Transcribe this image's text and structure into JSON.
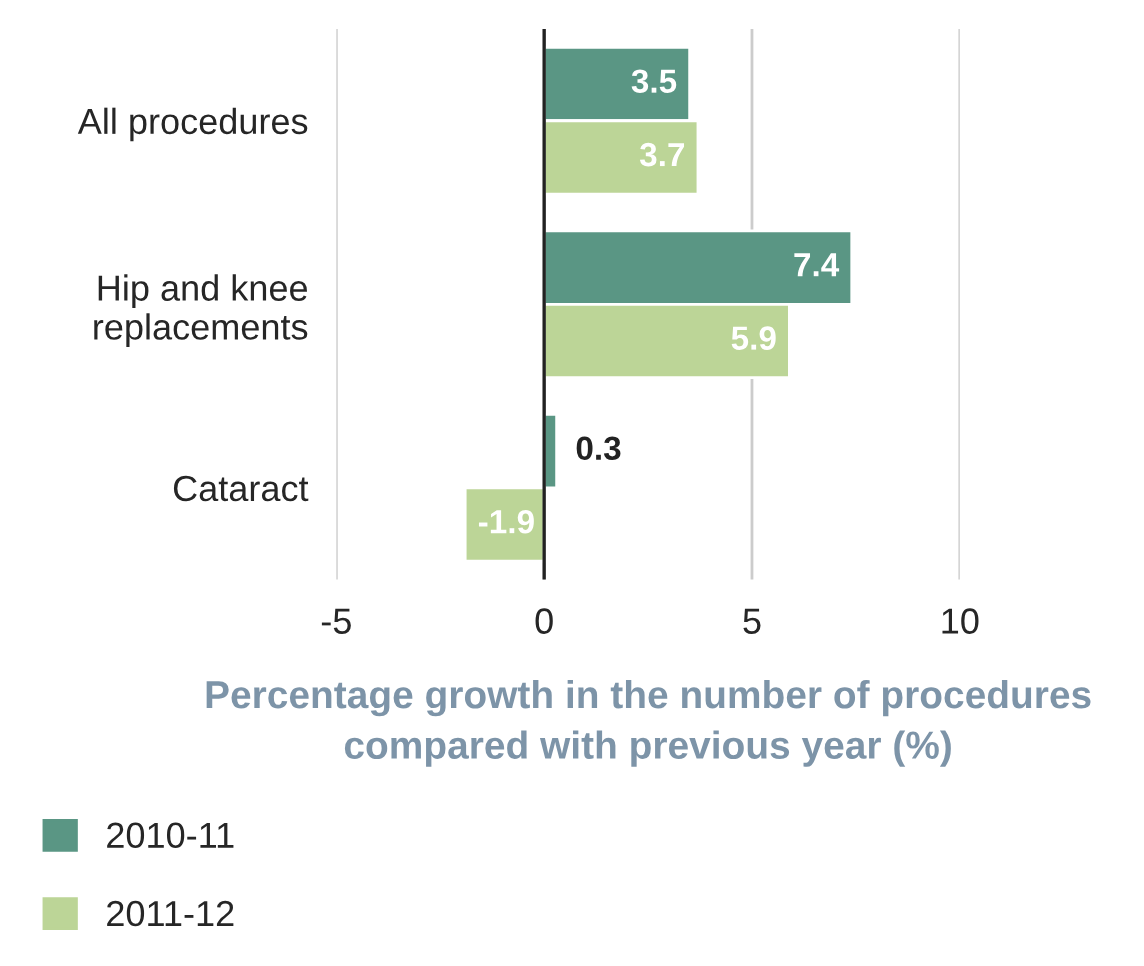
{
  "chart_data": {
    "type": "bar",
    "orientation": "horizontal",
    "categories": [
      "All procedures",
      "Hip and knee\nreplacements",
      "Cataract"
    ],
    "series": [
      {
        "name": "2010-11",
        "color": "#5a9684",
        "values": [
          3.5,
          7.4,
          0.3
        ]
      },
      {
        "name": "2011-12",
        "color": "#bcd597",
        "values": [
          3.7,
          5.9,
          -1.9
        ]
      }
    ],
    "xlabel": "Percentage growth in the number of procedures\ncompared with previous year (%)",
    "xlim": [
      -5,
      10
    ],
    "xticks": [
      -5,
      0,
      5,
      10
    ],
    "grid": "x",
    "ref_lines": [
      {
        "axis": "x",
        "value": 0,
        "color": "#222222"
      }
    ],
    "data_labels": true,
    "legend": "bottom left"
  }
}
